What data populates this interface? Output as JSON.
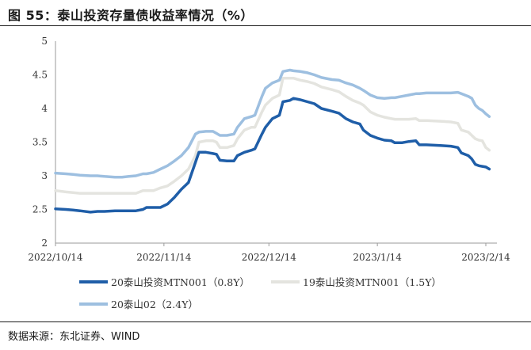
{
  "header": {
    "title": "图 55：泰山投资存量债收益率情况（%）"
  },
  "footer": {
    "source": "数据来源：东北证券、WIND"
  },
  "colors": {
    "series0": "#1f5ea8",
    "series1": "#e4e4df",
    "series2": "#9dbfe0",
    "axis": "#9a9a9a"
  },
  "chart_data": {
    "type": "line",
    "title": "",
    "xlabel": "",
    "ylabel": "",
    "ylim": [
      2,
      5
    ],
    "yticks": [
      "2",
      "2.5",
      "3",
      "3.5",
      "4",
      "4.5",
      "5"
    ],
    "xlim": [
      "2022-10-14",
      "2023-02-14"
    ],
    "xticks": [
      "2022/10/14",
      "2022/11/14",
      "2022/12/14",
      "2023/1/14",
      "2023/2/14"
    ],
    "grid": false,
    "legend_position": "bottom",
    "series": [
      {
        "name": "20泰山投资MTN001（0.8Y）",
        "points": [
          [
            "2022-10-14",
            2.51
          ],
          [
            "2022-10-17",
            2.5
          ],
          [
            "2022-10-19",
            2.49
          ],
          [
            "2022-10-21",
            2.48
          ],
          [
            "2022-10-24",
            2.46
          ],
          [
            "2022-10-26",
            2.47
          ],
          [
            "2022-10-28",
            2.47
          ],
          [
            "2022-10-31",
            2.48
          ],
          [
            "2022-11-02",
            2.48
          ],
          [
            "2022-11-04",
            2.48
          ],
          [
            "2022-11-06",
            2.48
          ],
          [
            "2022-11-08",
            2.5
          ],
          [
            "2022-11-09",
            2.53
          ],
          [
            "2022-11-11",
            2.53
          ],
          [
            "2022-11-13",
            2.53
          ],
          [
            "2022-11-15",
            2.58
          ],
          [
            "2022-11-17",
            2.68
          ],
          [
            "2022-11-19",
            2.8
          ],
          [
            "2022-11-21",
            2.9
          ],
          [
            "2022-11-23",
            3.2
          ],
          [
            "2022-11-24",
            3.35
          ],
          [
            "2022-11-26",
            3.35
          ],
          [
            "2022-11-28",
            3.33
          ],
          [
            "2022-11-29",
            3.32
          ],
          [
            "2022-11-30",
            3.23
          ],
          [
            "2022-12-02",
            3.22
          ],
          [
            "2022-12-04",
            3.22
          ],
          [
            "2022-12-05",
            3.3
          ],
          [
            "2022-12-07",
            3.35
          ],
          [
            "2022-12-09",
            3.38
          ],
          [
            "2022-12-10",
            3.4
          ],
          [
            "2022-12-12",
            3.62
          ],
          [
            "2022-12-13",
            3.72
          ],
          [
            "2022-12-15",
            3.85
          ],
          [
            "2022-12-17",
            3.9
          ],
          [
            "2022-12-18",
            4.1
          ],
          [
            "2022-12-20",
            4.12
          ],
          [
            "2022-12-21",
            4.15
          ],
          [
            "2022-12-23",
            4.13
          ],
          [
            "2022-12-25",
            4.1
          ],
          [
            "2022-12-27",
            4.07
          ],
          [
            "2022-12-29",
            4.0
          ],
          [
            "2023-01-01",
            3.96
          ],
          [
            "2023-01-03",
            3.93
          ],
          [
            "2023-01-05",
            3.85
          ],
          [
            "2023-01-07",
            3.8
          ],
          [
            "2023-01-09",
            3.77
          ],
          [
            "2023-01-10",
            3.68
          ],
          [
            "2023-01-12",
            3.6
          ],
          [
            "2023-01-14",
            3.56
          ],
          [
            "2023-01-16",
            3.53
          ],
          [
            "2023-01-18",
            3.52
          ],
          [
            "2023-01-19",
            3.49
          ],
          [
            "2023-01-21",
            3.49
          ],
          [
            "2023-01-23",
            3.51
          ],
          [
            "2023-01-25",
            3.52
          ],
          [
            "2023-01-26",
            3.46
          ],
          [
            "2023-01-28",
            3.46
          ],
          [
            "2023-02-01",
            3.45
          ],
          [
            "2023-02-04",
            3.44
          ],
          [
            "2023-02-06",
            3.42
          ],
          [
            "2023-02-07",
            3.34
          ],
          [
            "2023-02-09",
            3.3
          ],
          [
            "2023-02-10",
            3.25
          ],
          [
            "2023-02-11",
            3.17
          ],
          [
            "2023-02-12",
            3.15
          ],
          [
            "2023-02-13",
            3.14
          ],
          [
            "2023-02-14",
            3.13
          ],
          [
            "2023-02-15",
            3.1
          ]
        ]
      },
      {
        "name": "19泰山投资MTN001（1.5Y）",
        "points": [
          [
            "2022-10-14",
            2.78
          ],
          [
            "2022-10-17",
            2.76
          ],
          [
            "2022-10-19",
            2.75
          ],
          [
            "2022-10-21",
            2.74
          ],
          [
            "2022-10-24",
            2.74
          ],
          [
            "2022-10-26",
            2.74
          ],
          [
            "2022-10-28",
            2.74
          ],
          [
            "2022-10-31",
            2.74
          ],
          [
            "2022-11-02",
            2.74
          ],
          [
            "2022-11-04",
            2.74
          ],
          [
            "2022-11-06",
            2.74
          ],
          [
            "2022-11-08",
            2.78
          ],
          [
            "2022-11-09",
            2.78
          ],
          [
            "2022-11-11",
            2.78
          ],
          [
            "2022-11-13",
            2.82
          ],
          [
            "2022-11-15",
            2.85
          ],
          [
            "2022-11-17",
            2.92
          ],
          [
            "2022-11-19",
            3.0
          ],
          [
            "2022-11-21",
            3.1
          ],
          [
            "2022-11-23",
            3.3
          ],
          [
            "2022-11-24",
            3.5
          ],
          [
            "2022-11-26",
            3.52
          ],
          [
            "2022-11-28",
            3.52
          ],
          [
            "2022-11-29",
            3.5
          ],
          [
            "2022-11-30",
            3.42
          ],
          [
            "2022-12-02",
            3.42
          ],
          [
            "2022-12-04",
            3.45
          ],
          [
            "2022-12-05",
            3.55
          ],
          [
            "2022-12-07",
            3.68
          ],
          [
            "2022-12-09",
            3.72
          ],
          [
            "2022-12-10",
            3.72
          ],
          [
            "2022-12-12",
            3.95
          ],
          [
            "2022-12-13",
            4.05
          ],
          [
            "2022-12-15",
            4.15
          ],
          [
            "2022-12-17",
            4.2
          ],
          [
            "2022-12-18",
            4.45
          ],
          [
            "2022-12-20",
            4.45
          ],
          [
            "2022-12-21",
            4.45
          ],
          [
            "2022-12-23",
            4.42
          ],
          [
            "2022-12-25",
            4.4
          ],
          [
            "2022-12-27",
            4.37
          ],
          [
            "2022-12-29",
            4.32
          ],
          [
            "2023-01-01",
            4.28
          ],
          [
            "2023-01-03",
            4.25
          ],
          [
            "2023-01-05",
            4.18
          ],
          [
            "2023-01-07",
            4.12
          ],
          [
            "2023-01-09",
            4.08
          ],
          [
            "2023-01-10",
            4.05
          ],
          [
            "2023-01-12",
            3.95
          ],
          [
            "2023-01-14",
            3.9
          ],
          [
            "2023-01-16",
            3.87
          ],
          [
            "2023-01-18",
            3.85
          ],
          [
            "2023-01-19",
            3.84
          ],
          [
            "2023-01-21",
            3.84
          ],
          [
            "2023-01-23",
            3.84
          ],
          [
            "2023-01-25",
            3.85
          ],
          [
            "2023-01-26",
            3.82
          ],
          [
            "2023-01-28",
            3.82
          ],
          [
            "2023-02-01",
            3.81
          ],
          [
            "2023-02-04",
            3.8
          ],
          [
            "2023-02-06",
            3.78
          ],
          [
            "2023-02-07",
            3.68
          ],
          [
            "2023-02-09",
            3.65
          ],
          [
            "2023-02-10",
            3.6
          ],
          [
            "2023-02-11",
            3.55
          ],
          [
            "2023-02-12",
            3.53
          ],
          [
            "2023-02-13",
            3.52
          ],
          [
            "2023-02-14",
            3.42
          ],
          [
            "2023-02-15",
            3.38
          ]
        ]
      },
      {
        "name": "20泰山02（2.4Y）",
        "points": [
          [
            "2022-10-14",
            3.04
          ],
          [
            "2022-10-17",
            3.03
          ],
          [
            "2022-10-19",
            3.02
          ],
          [
            "2022-10-21",
            3.01
          ],
          [
            "2022-10-24",
            3.0
          ],
          [
            "2022-10-26",
            3.0
          ],
          [
            "2022-10-28",
            2.99
          ],
          [
            "2022-10-31",
            2.98
          ],
          [
            "2022-11-02",
            2.98
          ],
          [
            "2022-11-04",
            2.99
          ],
          [
            "2022-11-06",
            3.0
          ],
          [
            "2022-11-08",
            3.03
          ],
          [
            "2022-11-09",
            3.03
          ],
          [
            "2022-11-11",
            3.05
          ],
          [
            "2022-11-13",
            3.1
          ],
          [
            "2022-11-15",
            3.15
          ],
          [
            "2022-11-17",
            3.22
          ],
          [
            "2022-11-19",
            3.3
          ],
          [
            "2022-11-21",
            3.42
          ],
          [
            "2022-11-23",
            3.62
          ],
          [
            "2022-11-24",
            3.65
          ],
          [
            "2022-11-26",
            3.66
          ],
          [
            "2022-11-28",
            3.66
          ],
          [
            "2022-11-29",
            3.63
          ],
          [
            "2022-11-30",
            3.6
          ],
          [
            "2022-12-02",
            3.6
          ],
          [
            "2022-12-04",
            3.62
          ],
          [
            "2022-12-05",
            3.72
          ],
          [
            "2022-12-07",
            3.85
          ],
          [
            "2022-12-09",
            3.88
          ],
          [
            "2022-12-10",
            3.9
          ],
          [
            "2022-12-12",
            4.18
          ],
          [
            "2022-12-13",
            4.3
          ],
          [
            "2022-12-15",
            4.38
          ],
          [
            "2022-12-17",
            4.42
          ],
          [
            "2022-12-18",
            4.55
          ],
          [
            "2022-12-20",
            4.57
          ],
          [
            "2022-12-21",
            4.56
          ],
          [
            "2022-12-23",
            4.55
          ],
          [
            "2022-12-25",
            4.53
          ],
          [
            "2022-12-27",
            4.5
          ],
          [
            "2022-12-29",
            4.46
          ],
          [
            "2023-01-01",
            4.43
          ],
          [
            "2023-01-03",
            4.42
          ],
          [
            "2023-01-05",
            4.38
          ],
          [
            "2023-01-07",
            4.35
          ],
          [
            "2023-01-09",
            4.3
          ],
          [
            "2023-01-10",
            4.27
          ],
          [
            "2023-01-12",
            4.2
          ],
          [
            "2023-01-14",
            4.16
          ],
          [
            "2023-01-16",
            4.15
          ],
          [
            "2023-01-18",
            4.16
          ],
          [
            "2023-01-19",
            4.16
          ],
          [
            "2023-01-21",
            4.18
          ],
          [
            "2023-01-23",
            4.2
          ],
          [
            "2023-01-25",
            4.22
          ],
          [
            "2023-01-26",
            4.22
          ],
          [
            "2023-01-28",
            4.23
          ],
          [
            "2023-02-01",
            4.23
          ],
          [
            "2023-02-04",
            4.23
          ],
          [
            "2023-02-06",
            4.24
          ],
          [
            "2023-02-07",
            4.22
          ],
          [
            "2023-02-09",
            4.18
          ],
          [
            "2023-02-10",
            4.15
          ],
          [
            "2023-02-11",
            4.05
          ],
          [
            "2023-02-12",
            4.0
          ],
          [
            "2023-02-13",
            3.97
          ],
          [
            "2023-02-14",
            3.92
          ],
          [
            "2023-02-15",
            3.88
          ]
        ]
      }
    ]
  }
}
